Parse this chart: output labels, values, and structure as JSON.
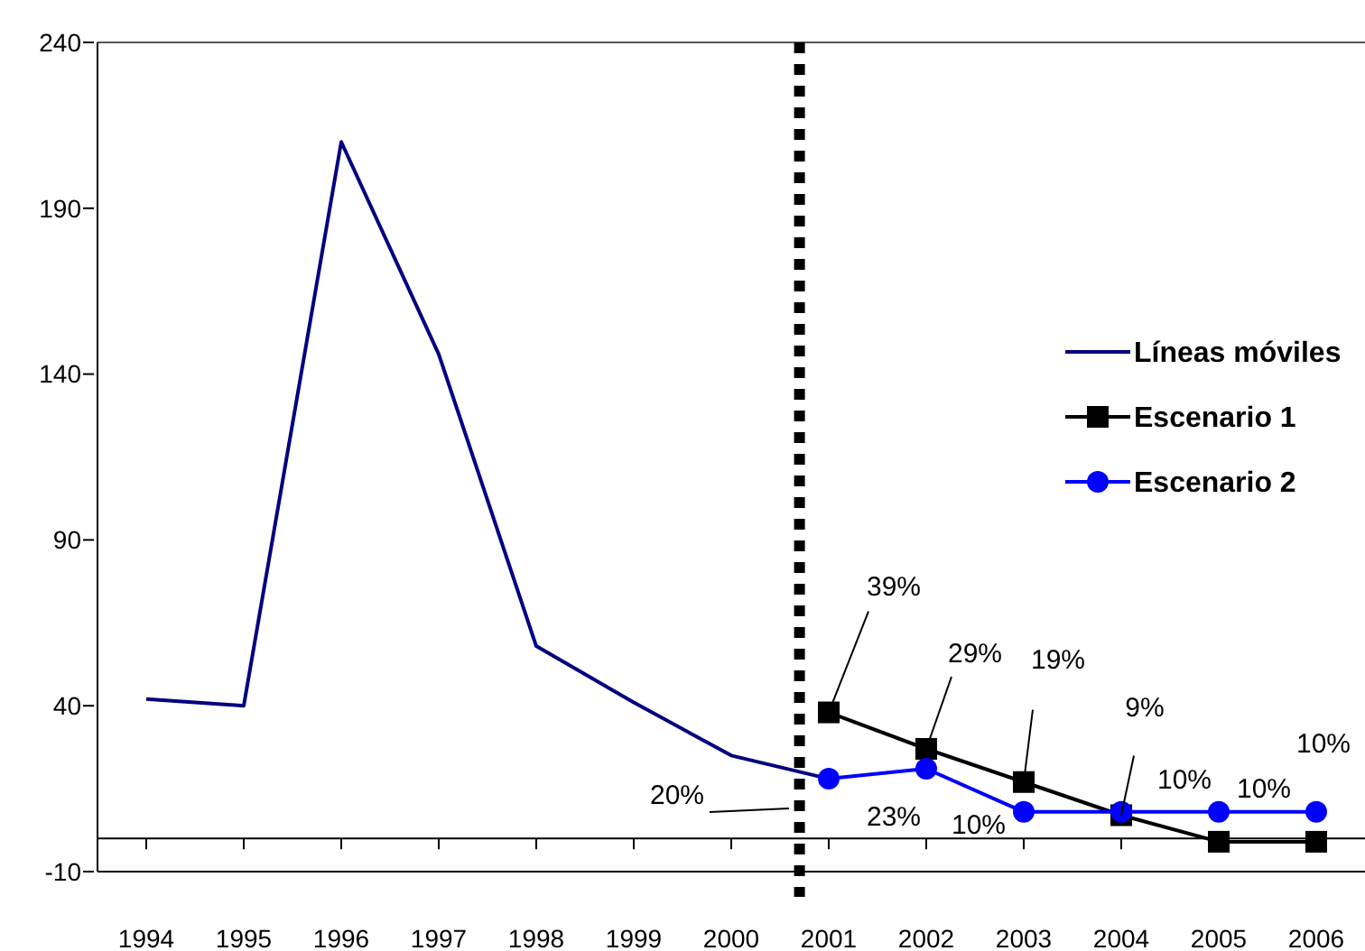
{
  "chart_data": {
    "type": "line",
    "x": [
      1994,
      1995,
      1996,
      1997,
      1998,
      1999,
      2000,
      2001,
      2002,
      2003,
      2004,
      2005,
      2006
    ],
    "xlim": [
      1993.5,
      2006.5
    ],
    "xticks": [
      1994,
      1995,
      1996,
      1997,
      1998,
      1999,
      2000,
      2001,
      2002,
      2003,
      2004,
      2005,
      2006
    ],
    "ylim": [
      -10,
      240
    ],
    "yticks": [
      -10,
      40,
      90,
      140,
      190,
      240
    ],
    "grid": false,
    "legend": "right",
    "series": [
      {
        "name": "Líneas móviles",
        "color": "#000080",
        "marker": "none",
        "values": [
          42,
          40,
          210,
          146,
          58,
          41,
          25,
          18,
          null,
          null,
          null,
          null,
          null
        ]
      },
      {
        "name": "Escenario 1",
        "color": "#000000",
        "marker": "square",
        "values": [
          null,
          null,
          null,
          null,
          null,
          null,
          null,
          38,
          27,
          17,
          7,
          -1,
          -1
        ]
      },
      {
        "name": "Escenario 2",
        "color": "#0000ff",
        "marker": "circle",
        "values": [
          null,
          null,
          null,
          null,
          null,
          null,
          null,
          18,
          21,
          8,
          8,
          8,
          8
        ]
      }
    ],
    "ref_lines": [
      {
        "axis": "x",
        "value": 2000.7,
        "color": "#000000",
        "line_style": "dotted"
      }
    ],
    "annotations": [
      "20%",
      {
        "text": "23%",
        "x": 2002,
        "y": 21
      },
      {
        "text": "10%",
        "x": 2003,
        "y": 8
      },
      {
        "text": "39%",
        "x": 2001,
        "y": 38
      },
      {
        "text": "29%",
        "x": 2002,
        "y": 27
      },
      {
        "text": "19%",
        "x": 2003,
        "y": 17
      },
      {
        "text": "9%",
        "x": 2004,
        "y": 7
      },
      {
        "text": "10%",
        "x": 2004,
        "y": 8
      },
      {
        "text": "10%",
        "x": 2005,
        "y": 8
      },
      {
        "text": "10%",
        "x": 2006,
        "y": 8
      }
    ]
  }
}
